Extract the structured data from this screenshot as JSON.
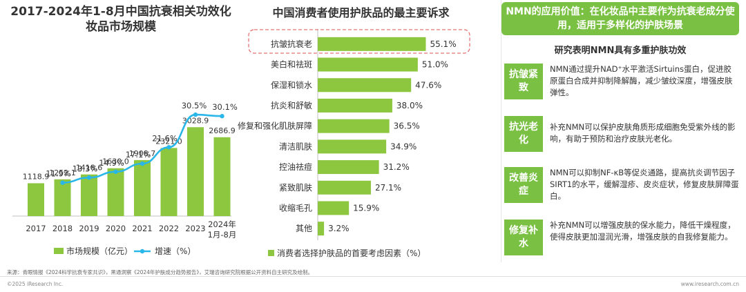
{
  "chart_data": [
    {
      "type": "bar+line",
      "title": "2017-2024年1-8月中国抗衰相关功效化妆品市场规模",
      "categories": [
        "2017",
        "2018",
        "2019",
        "2020",
        "2021",
        "2022",
        "2023",
        "2024年1月-8月"
      ],
      "series": [
        {
          "name": "市场规模（亿元）",
          "type": "bar",
          "values": [
            1118.9,
            1252.1,
            1418.6,
            1630.0,
            1908.7,
            2321.0,
            3028.9,
            2686.9
          ],
          "labels": [
            "1118.9",
            "1252.1",
            "1418.6",
            "1630.0",
            "1908.7",
            "2321.0",
            "3028.9",
            "2686.9"
          ]
        },
        {
          "name": "增速（%）",
          "type": "line",
          "values": [
            null,
            11.9,
            13.3,
            14.9,
            17.1,
            21.6,
            30.5,
            30.1
          ],
          "labels": [
            "",
            "11.9%",
            "13.3%",
            "14.9%",
            "17.1%",
            "21.6%",
            "30.5%",
            "30.1%"
          ]
        }
      ],
      "legend_placement": "bottom",
      "colors": {
        "bar": "#8dc63f",
        "line": "#29b6e8"
      }
    },
    {
      "type": "bar",
      "orientation": "horizontal",
      "title": "中国消费者使用护肤品的最主要诉求",
      "categories": [
        "抗皱抗衰老",
        "美白和祛斑",
        "保湿和锁水",
        "抗炎和舒敏",
        "修复和强化肌肤屏障",
        "清洁肌肤",
        "控油祛痘",
        "紧致肌肤",
        "收缩毛孔",
        "其他"
      ],
      "series": [
        {
          "name": "消费者选择护肤品的首要考虑因素（%）",
          "values": [
            55.1,
            51.0,
            47.6,
            38.0,
            36.5,
            34.9,
            31.2,
            27.1,
            15.9,
            3.2
          ],
          "labels": [
            "55.1%",
            "51.0%",
            "47.6%",
            "38.0%",
            "36.5%",
            "34.9%",
            "31.2%",
            "27.1%",
            "15.9%",
            "3.2%"
          ]
        }
      ],
      "highlight_category": "抗皱抗衰老",
      "legend_placement": "bottom",
      "colors": {
        "bar": "#8dc63f",
        "highlight_border": "#e57373"
      }
    }
  ],
  "panel": {
    "header": "NMN的应用价值：在化妆品中主要作为抗衰老成分使用，适用于多样化的护肤场景",
    "subtitle": "研究表明NMN具有多重护肤功效",
    "benefits": [
      {
        "tag": "抗皱紧致",
        "text": "NMN通过提升NAD⁺水平激活Sirtuins蛋白，促进胶原蛋白合成并抑制降解酶，减少皱纹深度，增强皮肤弹性。"
      },
      {
        "tag": "抗光老化",
        "text": "补充NMN可以保护皮肤角质形成细胞免受紫外线的影响，有助于预防和治疗皮肤光老化。"
      },
      {
        "tag": "改善炎症",
        "text": "NMN可以抑制NF-κB等促炎通路，提高抗炎调节因子SIRT1的水平，缓解湿疹、皮炎症状，修复皮肤屏障蛋白。"
      },
      {
        "tag": "修复补水",
        "text": "补充NMN可以增强皮肤的保水能力，降低干燥程度，使得皮肤更加湿润光滑，增强皮肤的自我修复能力。"
      }
    ]
  },
  "footer": {
    "source": "来源：青眼情报《2024科学抗衰专家共识》，黑通洞察《2024年护肤成分趋势报告》，艾瑞咨询研究院根据公开资料自主研究及绘制。",
    "copyright": "©2025 iResearch Inc.",
    "website": "www.iresearch.com.cn"
  }
}
